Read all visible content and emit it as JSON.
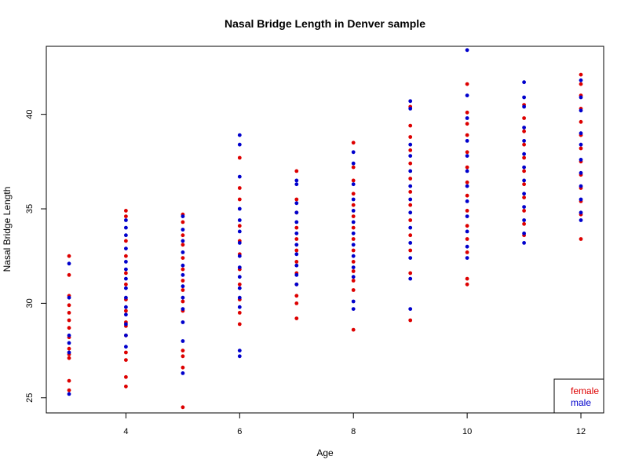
{
  "chart_data": {
    "type": "scatter",
    "title": "Nasal Bridge Length in Denver sample",
    "xlabel": "Age",
    "ylabel": "Nasal Bridge Length",
    "xlim": [
      2.6,
      12.4
    ],
    "ylim": [
      24.2,
      43.6
    ],
    "xticks": [
      "4",
      "6",
      "8",
      "10",
      "12"
    ],
    "yticks": [
      "25",
      "30",
      "35",
      "40"
    ],
    "grid": false,
    "legend_position": "bottom-right",
    "series": [
      {
        "name": "female",
        "color": "#dd0000",
        "points": [
          [
            3,
            32.5
          ],
          [
            3,
            31.5
          ],
          [
            3,
            30.4
          ],
          [
            3,
            29.9
          ],
          [
            3,
            29.5
          ],
          [
            3,
            29.1
          ],
          [
            3,
            28.7
          ],
          [
            3,
            28.2
          ],
          [
            3,
            27.6
          ],
          [
            3,
            27.3
          ],
          [
            3,
            27.1
          ],
          [
            3,
            25.9
          ],
          [
            3,
            25.4
          ],
          [
            4,
            34.9
          ],
          [
            4,
            34.6
          ],
          [
            4,
            33.3
          ],
          [
            4,
            32.5
          ],
          [
            4,
            31.6
          ],
          [
            4,
            31.0
          ],
          [
            4,
            30.2
          ],
          [
            4,
            29.6
          ],
          [
            4,
            29.0
          ],
          [
            4,
            28.8
          ],
          [
            4,
            28.3
          ],
          [
            4,
            27.4
          ],
          [
            4,
            27.0
          ],
          [
            4,
            26.1
          ],
          [
            4,
            25.6
          ],
          [
            5,
            34.7
          ],
          [
            5,
            34.3
          ],
          [
            5,
            33.6
          ],
          [
            5,
            33.1
          ],
          [
            5,
            32.4
          ],
          [
            5,
            31.8
          ],
          [
            5,
            31.2
          ],
          [
            5,
            30.7
          ],
          [
            5,
            30.1
          ],
          [
            5,
            29.6
          ],
          [
            5,
            27.5
          ],
          [
            5,
            27.2
          ],
          [
            5,
            26.6
          ],
          [
            5,
            24.5
          ],
          [
            6,
            37.7
          ],
          [
            6,
            36.1
          ],
          [
            6,
            35.5
          ],
          [
            6,
            34.1
          ],
          [
            6,
            33.3
          ],
          [
            6,
            32.6
          ],
          [
            6,
            31.8
          ],
          [
            6,
            31.0
          ],
          [
            6,
            30.2
          ],
          [
            6,
            29.5
          ],
          [
            6,
            28.9
          ],
          [
            7,
            37.0
          ],
          [
            7,
            35.5
          ],
          [
            7,
            34.8
          ],
          [
            7,
            34.0
          ],
          [
            7,
            33.4
          ],
          [
            7,
            32.8
          ],
          [
            7,
            32.2
          ],
          [
            7,
            31.6
          ],
          [
            7,
            31.0
          ],
          [
            7,
            30.4
          ],
          [
            7,
            30.0
          ],
          [
            7,
            29.2
          ],
          [
            8,
            38.5
          ],
          [
            8,
            37.2
          ],
          [
            8,
            36.5
          ],
          [
            8,
            35.8
          ],
          [
            8,
            35.2
          ],
          [
            8,
            34.6
          ],
          [
            8,
            34.0
          ],
          [
            8,
            33.4
          ],
          [
            8,
            32.8
          ],
          [
            8,
            32.2
          ],
          [
            8,
            31.7
          ],
          [
            8,
            31.2
          ],
          [
            8,
            30.7
          ],
          [
            8,
            28.6
          ],
          [
            9,
            40.4
          ],
          [
            9,
            39.4
          ],
          [
            9,
            38.8
          ],
          [
            9,
            38.1
          ],
          [
            9,
            37.4
          ],
          [
            9,
            36.6
          ],
          [
            9,
            35.9
          ],
          [
            9,
            35.2
          ],
          [
            9,
            34.4
          ],
          [
            9,
            33.6
          ],
          [
            9,
            32.8
          ],
          [
            9,
            31.6
          ],
          [
            9,
            29.1
          ],
          [
            10,
            41.6
          ],
          [
            10,
            40.1
          ],
          [
            10,
            39.5
          ],
          [
            10,
            38.9
          ],
          [
            10,
            38.0
          ],
          [
            10,
            37.2
          ],
          [
            10,
            36.4
          ],
          [
            10,
            35.7
          ],
          [
            10,
            34.9
          ],
          [
            10,
            34.1
          ],
          [
            10,
            33.4
          ],
          [
            10,
            32.7
          ],
          [
            10,
            31.3
          ],
          [
            10,
            31.0
          ],
          [
            11,
            40.5
          ],
          [
            11,
            39.8
          ],
          [
            11,
            39.1
          ],
          [
            11,
            38.4
          ],
          [
            11,
            37.7
          ],
          [
            11,
            37.0
          ],
          [
            11,
            36.3
          ],
          [
            11,
            35.6
          ],
          [
            11,
            34.9
          ],
          [
            11,
            34.2
          ],
          [
            11,
            33.6
          ],
          [
            12,
            42.1
          ],
          [
            12,
            41.6
          ],
          [
            12,
            41.0
          ],
          [
            12,
            40.3
          ],
          [
            12,
            39.6
          ],
          [
            12,
            38.9
          ],
          [
            12,
            38.2
          ],
          [
            12,
            37.5
          ],
          [
            12,
            36.8
          ],
          [
            12,
            36.1
          ],
          [
            12,
            35.4
          ],
          [
            12,
            34.7
          ],
          [
            12,
            33.4
          ]
        ]
      },
      {
        "name": "male",
        "color": "#0000cc",
        "points": [
          [
            3,
            32.1
          ],
          [
            3,
            30.3
          ],
          [
            3,
            28.3
          ],
          [
            3,
            27.9
          ],
          [
            3,
            27.4
          ],
          [
            3,
            25.2
          ],
          [
            4,
            34.4
          ],
          [
            4,
            34.0
          ],
          [
            4,
            33.6
          ],
          [
            4,
            32.9
          ],
          [
            4,
            32.2
          ],
          [
            4,
            31.8
          ],
          [
            4,
            31.3
          ],
          [
            4,
            30.8
          ],
          [
            4,
            30.3
          ],
          [
            4,
            29.8
          ],
          [
            4,
            29.4
          ],
          [
            4,
            28.9
          ],
          [
            4,
            28.3
          ],
          [
            4,
            27.7
          ],
          [
            5,
            34.6
          ],
          [
            5,
            33.9
          ],
          [
            5,
            33.3
          ],
          [
            5,
            32.7
          ],
          [
            5,
            32.0
          ],
          [
            5,
            31.5
          ],
          [
            5,
            30.9
          ],
          [
            5,
            30.3
          ],
          [
            5,
            29.7
          ],
          [
            5,
            29.0
          ],
          [
            5,
            28.0
          ],
          [
            5,
            26.3
          ],
          [
            6,
            38.9
          ],
          [
            6,
            38.4
          ],
          [
            6,
            36.7
          ],
          [
            6,
            35.0
          ],
          [
            6,
            34.4
          ],
          [
            6,
            33.8
          ],
          [
            6,
            33.2
          ],
          [
            6,
            32.5
          ],
          [
            6,
            31.9
          ],
          [
            6,
            31.4
          ],
          [
            6,
            30.8
          ],
          [
            6,
            30.3
          ],
          [
            6,
            29.8
          ],
          [
            6,
            27.5
          ],
          [
            6,
            27.2
          ],
          [
            7,
            36.5
          ],
          [
            7,
            36.3
          ],
          [
            7,
            35.3
          ],
          [
            7,
            34.8
          ],
          [
            7,
            34.3
          ],
          [
            7,
            33.7
          ],
          [
            7,
            33.1
          ],
          [
            7,
            32.6
          ],
          [
            7,
            32.0
          ],
          [
            7,
            31.5
          ],
          [
            7,
            31.0
          ],
          [
            8,
            38.0
          ],
          [
            8,
            37.4
          ],
          [
            8,
            36.3
          ],
          [
            8,
            35.5
          ],
          [
            8,
            34.9
          ],
          [
            8,
            34.3
          ],
          [
            8,
            33.7
          ],
          [
            8,
            33.1
          ],
          [
            8,
            32.5
          ],
          [
            8,
            31.9
          ],
          [
            8,
            31.4
          ],
          [
            8,
            30.1
          ],
          [
            8,
            29.7
          ],
          [
            9,
            40.7
          ],
          [
            9,
            40.3
          ],
          [
            9,
            38.4
          ],
          [
            9,
            37.8
          ],
          [
            9,
            37.0
          ],
          [
            9,
            36.2
          ],
          [
            9,
            35.5
          ],
          [
            9,
            34.8
          ],
          [
            9,
            34.0
          ],
          [
            9,
            33.2
          ],
          [
            9,
            32.4
          ],
          [
            9,
            31.3
          ],
          [
            9,
            29.7
          ],
          [
            10,
            43.4
          ],
          [
            10,
            41.0
          ],
          [
            10,
            39.8
          ],
          [
            10,
            38.6
          ],
          [
            10,
            37.8
          ],
          [
            10,
            37.0
          ],
          [
            10,
            36.2
          ],
          [
            10,
            35.4
          ],
          [
            10,
            34.6
          ],
          [
            10,
            33.8
          ],
          [
            10,
            33.0
          ],
          [
            10,
            32.4
          ],
          [
            11,
            41.7
          ],
          [
            11,
            40.9
          ],
          [
            11,
            40.4
          ],
          [
            11,
            39.3
          ],
          [
            11,
            38.6
          ],
          [
            11,
            37.9
          ],
          [
            11,
            37.2
          ],
          [
            11,
            36.5
          ],
          [
            11,
            35.8
          ],
          [
            11,
            35.1
          ],
          [
            11,
            34.4
          ],
          [
            11,
            33.7
          ],
          [
            11,
            33.2
          ],
          [
            12,
            41.8
          ],
          [
            12,
            40.9
          ],
          [
            12,
            40.2
          ],
          [
            12,
            39.0
          ],
          [
            12,
            38.4
          ],
          [
            12,
            37.6
          ],
          [
            12,
            36.9
          ],
          [
            12,
            36.2
          ],
          [
            12,
            35.5
          ],
          [
            12,
            34.8
          ],
          [
            12,
            34.4
          ]
        ]
      }
    ]
  }
}
